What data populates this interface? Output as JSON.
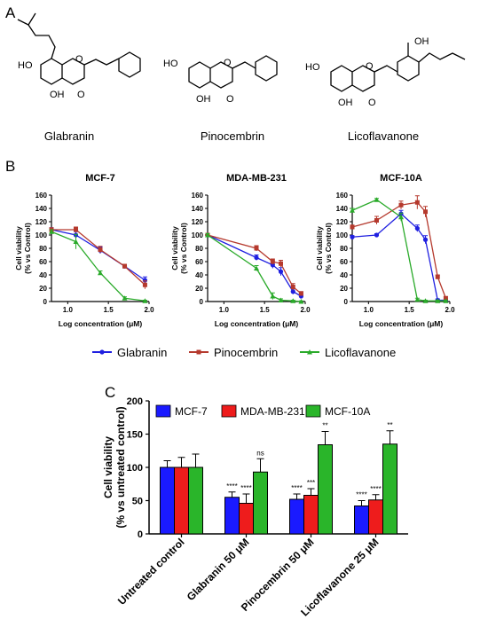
{
  "panels": {
    "a": "A",
    "b": "B",
    "c": "C"
  },
  "molecules": [
    {
      "name": "Glabranin",
      "atoms": {
        "ho": "HO",
        "o1": "O",
        "oh": "OH",
        "o2": "O"
      }
    },
    {
      "name": "Pinocembrin",
      "atoms": {
        "ho": "HO",
        "o1": "O",
        "oh": "OH",
        "o2": "O"
      }
    },
    {
      "name": "Licoflavanone",
      "atoms": {
        "ho": "HO",
        "o1": "O",
        "oh": "OH",
        "o2": "O",
        "oh2": "OH"
      }
    }
  ],
  "colors": {
    "glabranin": "#1f1fe0",
    "pinocembrin": "#b5392d",
    "licoflavanone": "#2aaa2a",
    "mcf7": "#1a1aff",
    "mdamb231": "#ee1c1c",
    "mcf10a": "#2ab52a"
  },
  "chart_data": [
    {
      "type": "line",
      "title": "MCF-7",
      "xlabel": "Log concentration (μM)",
      "ylabel": "Cell viability (% vs Control)",
      "xlim": [
        0.8,
        2.0
      ],
      "ylim": [
        0,
        160
      ],
      "xticks": [
        "1.0",
        "1.5",
        "2.0"
      ],
      "yticks": [
        "0",
        "20",
        "40",
        "60",
        "80",
        "100",
        "120",
        "140",
        "160"
      ],
      "series": [
        {
          "name": "Glabranin",
          "x": [
            0.8,
            1.1,
            1.4,
            1.7,
            1.95
          ],
          "y": [
            108,
            100,
            77,
            53,
            32
          ],
          "err": [
            3,
            5,
            5,
            3,
            5
          ]
        },
        {
          "name": "Pinocembrin",
          "x": [
            0.8,
            1.1,
            1.4,
            1.7,
            1.95
          ],
          "y": [
            108,
            108,
            78,
            53,
            25
          ],
          "err": [
            3,
            4,
            5,
            3,
            6
          ]
        },
        {
          "name": "Licoflavanone",
          "x": [
            0.8,
            1.1,
            1.4,
            1.7,
            1.95
          ],
          "y": [
            105,
            90,
            43,
            5,
            1
          ],
          "err": [
            3,
            11,
            3,
            2,
            1
          ]
        }
      ]
    },
    {
      "type": "line",
      "title": "MDA-MB-231",
      "xlabel": "Log concentration (μM)",
      "ylabel": "Cell viability (% vs Control)",
      "xlim": [
        0.8,
        2.0
      ],
      "ylim": [
        0,
        160
      ],
      "xticks": [
        "1.0",
        "1.5",
        "2.0"
      ],
      "yticks": [
        "0",
        "20",
        "40",
        "60",
        "80",
        "100",
        "120",
        "140",
        "160"
      ],
      "series": [
        {
          "name": "Glabranin",
          "x": [
            0.8,
            1.4,
            1.6,
            1.7,
            1.85,
            1.95
          ],
          "y": [
            100,
            66,
            55,
            45,
            15,
            8
          ],
          "err": [
            2,
            4,
            5,
            6,
            4,
            3
          ]
        },
        {
          "name": "Pinocembrin",
          "x": [
            0.8,
            1.4,
            1.6,
            1.7,
            1.85,
            1.95
          ],
          "y": [
            100,
            80,
            60,
            57,
            22,
            12
          ],
          "err": [
            2,
            4,
            4,
            5,
            5,
            3
          ]
        },
        {
          "name": "Licoflavanone",
          "x": [
            0.8,
            1.4,
            1.6,
            1.7,
            1.85,
            1.95
          ],
          "y": [
            100,
            50,
            8,
            2,
            1,
            0
          ],
          "err": [
            2,
            4,
            5,
            2,
            1,
            1
          ]
        }
      ]
    },
    {
      "type": "line",
      "title": "MCF-10A",
      "xlabel": "Log concentration (μM)",
      "ylabel": "Cell viability (% vs Control)",
      "xlim": [
        0.8,
        2.0
      ],
      "ylim": [
        0,
        160
      ],
      "xticks": [
        "1.0",
        "1.5",
        "2.0"
      ],
      "yticks": [
        "0",
        "20",
        "40",
        "60",
        "80",
        "100",
        "120",
        "140",
        "160"
      ],
      "series": [
        {
          "name": "Glabranin",
          "x": [
            0.8,
            1.1,
            1.4,
            1.6,
            1.7,
            1.85,
            1.95
          ],
          "y": [
            97,
            100,
            132,
            110,
            93,
            2,
            2
          ],
          "err": [
            2,
            2,
            5,
            5,
            6,
            2,
            2
          ]
        },
        {
          "name": "Pinocembrin",
          "x": [
            0.8,
            1.1,
            1.4,
            1.6,
            1.7,
            1.85,
            1.95
          ],
          "y": [
            112,
            122,
            145,
            149,
            135,
            37,
            5
          ],
          "err": [
            3,
            6,
            6,
            10,
            8,
            3,
            2
          ]
        },
        {
          "name": "Licoflavanone",
          "x": [
            0.8,
            1.1,
            1.4,
            1.6,
            1.7,
            1.85,
            1.95
          ],
          "y": [
            137,
            153,
            127,
            3,
            1,
            1,
            1
          ],
          "err": [
            3,
            2,
            6,
            2,
            1,
            1,
            1
          ]
        }
      ]
    },
    {
      "type": "bar",
      "ylabel": "Cell viability (% vs untreated control)",
      "ylim": [
        0,
        200
      ],
      "yticks": [
        "0",
        "50",
        "100",
        "150",
        "200"
      ],
      "legend_position": "top",
      "categories": [
        "Untreated control",
        "Glabranin 50 μM",
        "Pinocembrin 50 μM",
        "Licoflavanone 25 μM"
      ],
      "series": [
        {
          "name": "MCF-7",
          "values": [
            100,
            55,
            52,
            42
          ],
          "err": [
            10,
            8,
            8,
            8
          ],
          "sig": [
            "",
            "****",
            "****",
            "****"
          ]
        },
        {
          "name": "MDA-MB-231",
          "values": [
            100,
            46,
            58,
            51
          ],
          "err": [
            15,
            14,
            10,
            8
          ],
          "sig": [
            "",
            "****",
            "***",
            "****"
          ]
        },
        {
          "name": "MCF-10A",
          "values": [
            100,
            93,
            134,
            135
          ],
          "err": [
            20,
            20,
            20,
            20
          ],
          "sig": [
            "",
            "ns",
            "**",
            "**"
          ]
        }
      ]
    }
  ]
}
